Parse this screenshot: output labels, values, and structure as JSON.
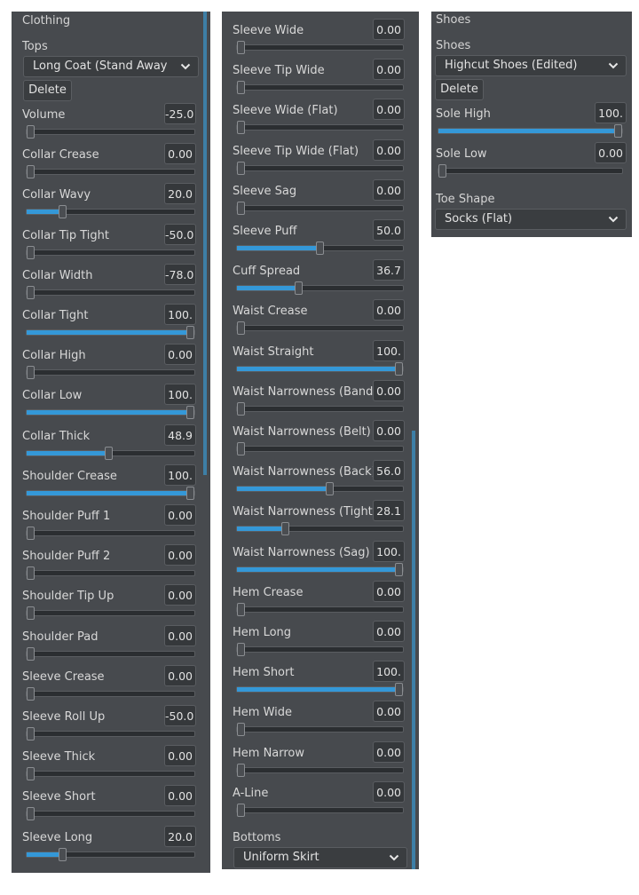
{
  "panel1": {
    "section_title": "Clothing",
    "tops_label": "Tops",
    "tops_value": "Long Coat (Stand Away",
    "delete_label": "Delete",
    "sliders": [
      {
        "label": "Volume",
        "value": "-25.0",
        "level": 0
      },
      {
        "label": "Collar Crease",
        "value": "0.00",
        "level": 0
      },
      {
        "label": "Collar Wavy",
        "value": "20.0",
        "level": 0.2
      },
      {
        "label": "Collar Tip Tight",
        "value": "-50.0",
        "level": 0
      },
      {
        "label": "Collar Width",
        "value": "-78.0",
        "level": 0
      },
      {
        "label": "Collar Tight",
        "value": "100.",
        "level": 1
      },
      {
        "label": "Collar High",
        "value": "0.00",
        "level": 0
      },
      {
        "label": "Collar Low",
        "value": "100.",
        "level": 1
      },
      {
        "label": "Collar Thick",
        "value": "48.9",
        "level": 0.489
      },
      {
        "label": "Shoulder Crease",
        "value": "100.",
        "level": 1
      },
      {
        "label": "Shoulder Puff 1",
        "value": "0.00",
        "level": 0
      },
      {
        "label": "Shoulder Puff 2",
        "value": "0.00",
        "level": 0
      },
      {
        "label": "Shoulder Tip Up",
        "value": "0.00",
        "level": 0
      },
      {
        "label": "Shoulder Pad",
        "value": "0.00",
        "level": 0
      },
      {
        "label": "Sleeve Crease",
        "value": "0.00",
        "level": 0
      },
      {
        "label": "Sleeve Roll Up",
        "value": "-50.0",
        "level": 0
      },
      {
        "label": "Sleeve Thick",
        "value": "0.00",
        "level": 0
      },
      {
        "label": "Sleeve Short",
        "value": "0.00",
        "level": 0
      },
      {
        "label": "Sleeve Long",
        "value": "20.0",
        "level": 0.2
      }
    ]
  },
  "panel2": {
    "sliders": [
      {
        "label": "Sleeve Wide",
        "value": "0.00",
        "level": 0
      },
      {
        "label": "Sleeve Tip Wide",
        "value": "0.00",
        "level": 0
      },
      {
        "label": "Sleeve Wide (Flat)",
        "value": "0.00",
        "level": 0
      },
      {
        "label": "Sleeve Tip Wide (Flat)",
        "value": "0.00",
        "level": 0
      },
      {
        "label": "Sleeve Sag",
        "value": "0.00",
        "level": 0
      },
      {
        "label": "Sleeve Puff",
        "value": "50.0",
        "level": 0.5
      },
      {
        "label": "Cuff Spread",
        "value": "36.7",
        "level": 0.367
      },
      {
        "label": "Waist Crease",
        "value": "0.00",
        "level": 0
      },
      {
        "label": "Waist Straight",
        "value": "100.",
        "level": 1
      },
      {
        "label": "Waist Narrowness (Band)",
        "value": "0.00",
        "level": 0
      },
      {
        "label": "Waist Narrowness (Belt)",
        "value": "0.00",
        "level": 0
      },
      {
        "label": "Waist Narrowness (Back)",
        "value": "56.0",
        "level": 0.56
      },
      {
        "label": "Waist Narrowness (Tight)",
        "value": "28.1",
        "level": 0.281
      },
      {
        "label": "Waist Narrowness (Sag)",
        "value": "100.",
        "level": 1
      },
      {
        "label": "Hem Crease",
        "value": "0.00",
        "level": 0
      },
      {
        "label": "Hem Long",
        "value": "0.00",
        "level": 0
      },
      {
        "label": "Hem Short",
        "value": "100.",
        "level": 1
      },
      {
        "label": "Hem Wide",
        "value": "0.00",
        "level": 0
      },
      {
        "label": "Hem Narrow",
        "value": "0.00",
        "level": 0
      },
      {
        "label": "A-Line",
        "value": "0.00",
        "level": 0
      }
    ],
    "bottoms_label": "Bottoms",
    "bottoms_value": "Uniform Skirt"
  },
  "panel3": {
    "section_title": "Shoes",
    "shoes_label": "Shoes",
    "shoes_value": "Highcut Shoes (Edited)",
    "delete_label": "Delete",
    "sliders": [
      {
        "label": "Sole High",
        "value": "100.",
        "level": 1
      },
      {
        "label": "Sole Low",
        "value": "0.00",
        "level": 0
      }
    ],
    "toe_label": "Toe Shape",
    "toe_value": "Socks (Flat)"
  },
  "icons": {
    "dropdown": "chevron-down-icon"
  },
  "colors": {
    "panel_bg": "#474a4e",
    "accent": "#3498d8",
    "field_bg": "#35383b"
  }
}
